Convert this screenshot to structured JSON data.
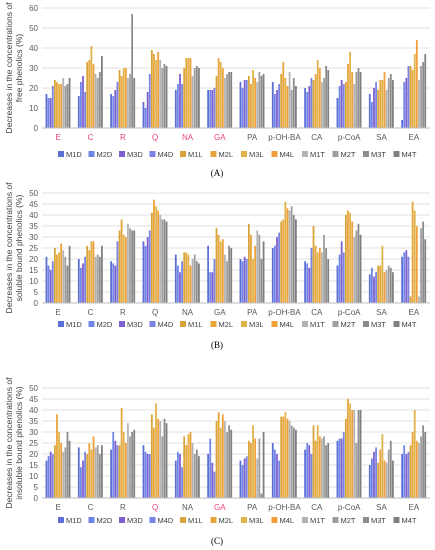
{
  "colors": [
    "#5b6fd6",
    "#6f86e8",
    "#7d5fd0",
    "#7a84e0",
    "#d7a43a",
    "#e8a53a",
    "#e2b24a",
    "#f0a038",
    "#b3b3b3",
    "#9e9e9e",
    "#8c8c8c",
    "#808080"
  ],
  "chart_data": [
    {
      "panel": "(A)",
      "type": "bar",
      "ylabel": "Decreases in the concentrations of free phenolics (%)",
      "ylim": [
        0,
        60
      ],
      "yticks": [
        0,
        10,
        20,
        30,
        40,
        50,
        60
      ],
      "legend": [
        "M1D",
        "M2D",
        "M3D",
        "M4D",
        "M1L",
        "M2L",
        "M3L",
        "M4L",
        "M1T",
        "M2T",
        "M3T",
        "M4T"
      ],
      "categories": [
        "E",
        "C",
        "R",
        "Q",
        "NA",
        "GA",
        "PA",
        "p-OH-BA",
        "CA",
        "p-CoA",
        "SA",
        "EA"
      ],
      "highlighted_categories": [
        "E",
        "C",
        "R",
        "Q",
        "NA",
        "GA"
      ],
      "values": [
        [
          17,
          15,
          15,
          21,
          24,
          23,
          22,
          22,
          25,
          21,
          22,
          25
        ],
        [
          16,
          23,
          26,
          18,
          33,
          34,
          41,
          32,
          27,
          25,
          28,
          36
        ],
        [
          17,
          16,
          19,
          23,
          29,
          26,
          30,
          30,
          25,
          27,
          57,
          25
        ],
        [
          13,
          10,
          18,
          27,
          39,
          37,
          34,
          38,
          34,
          30,
          32,
          31
        ],
        [
          19,
          22,
          27,
          22,
          30,
          35,
          35,
          35,
          26,
          30,
          31,
          30
        ],
        [
          19,
          19,
          19,
          20,
          26,
          35,
          33,
          30,
          25,
          27,
          28,
          28
        ],
        [
          23,
          20,
          24,
          24,
          26,
          22,
          29,
          25,
          23,
          28,
          26,
          27
        ],
        [
          23,
          17,
          19,
          22,
          27,
          33,
          25,
          21,
          28,
          19,
          25,
          21
        ],
        [
          20,
          18,
          21,
          25,
          24,
          27,
          34,
          30,
          23,
          25,
          31,
          29
        ],
        [
          15,
          21,
          24,
          22,
          23,
          32,
          38,
          28,
          22,
          28,
          30,
          28
        ],
        [
          17,
          13,
          20,
          23,
          19,
          24,
          24,
          28,
          19,
          25,
          27,
          24
        ],
        [
          4,
          23,
          25,
          31,
          31,
          29,
          37,
          44,
          24,
          31,
          33,
          37
        ]
      ]
    },
    {
      "panel": "(B)",
      "type": "bar",
      "ylabel": "Decreases in the concentrations of soluble bound phenolics (%)",
      "ylim": [
        0,
        50
      ],
      "yticks": [
        0,
        5,
        10,
        15,
        20,
        25,
        30,
        35,
        40,
        45,
        50
      ],
      "legend": [
        "M1D",
        "M2D",
        "M3D",
        "M4D",
        "M1L",
        "M2L",
        "M3L",
        "M4L",
        "M1T",
        "M2T",
        "M3T",
        "M4T"
      ],
      "categories": [
        "E",
        "C",
        "R",
        "Q",
        "NA",
        "GA",
        "PA",
        "p-OH-BA",
        "CA",
        "p-CoA",
        "SA",
        "EA"
      ],
      "highlighted_categories": [],
      "values": [
        [
          21,
          17,
          15,
          19,
          25,
          22,
          23,
          27,
          24,
          21,
          17,
          26
        ],
        [
          20,
          16,
          18,
          21,
          26,
          24,
          28,
          28,
          21,
          22,
          21,
          26
        ],
        [
          19,
          18,
          17,
          28,
          33,
          38,
          31,
          30,
          36,
          34,
          33,
          33
        ],
        [
          28,
          26,
          30,
          33,
          41,
          47,
          44,
          42,
          40,
          38,
          38,
          37
        ],
        [
          22,
          17,
          14,
          19,
          23,
          23,
          22,
          17,
          20,
          22,
          19,
          18
        ],
        [
          26,
          14,
          14,
          20,
          34,
          31,
          28,
          29,
          22,
          19,
          26,
          25
        ],
        [
          20,
          19,
          21,
          20,
          36,
          31,
          20,
          26,
          33,
          31,
          20,
          28
        ],
        [
          25,
          26,
          30,
          32,
          37,
          38,
          46,
          43,
          42,
          44,
          40,
          38
        ],
        [
          19,
          18,
          16,
          25,
          35,
          26,
          23,
          25,
          23,
          31,
          25,
          20
        ],
        [
          17,
          22,
          28,
          23,
          40,
          42,
          41,
          37,
          30,
          33,
          36,
          31
        ],
        [
          13,
          16,
          12,
          14,
          17,
          17,
          26,
          14,
          15,
          17,
          16,
          14
        ],
        [
          21,
          23,
          24,
          21,
          3,
          46,
          42,
          35,
          3,
          34,
          37,
          29
        ]
      ]
    },
    {
      "panel": "(C)",
      "type": "bar",
      "ylabel": "Decreases in the concentrations of insoluble bound phenolics (%)",
      "ylim": [
        0,
        50
      ],
      "yticks": [
        0,
        5,
        10,
        15,
        20,
        25,
        30,
        35,
        40,
        45,
        50
      ],
      "legend": [
        "M1D",
        "M2D",
        "M3D",
        "M4D",
        "M1L",
        "M2L",
        "M3L",
        "M4L",
        "M1T",
        "M2T",
        "M3T",
        "M4T"
      ],
      "categories": [
        "E",
        "C",
        "R",
        "Q",
        "NA",
        "GA",
        "PA",
        "p-OH-BA",
        "CA",
        "p-CoA",
        "SA",
        "EA"
      ],
      "highlighted_categories": [
        "Q",
        "GA"
      ],
      "values": [
        [
          17,
          19,
          21,
          20,
          24,
          38,
          30,
          25,
          21,
          23,
          30,
          26
        ],
        [
          23,
          14,
          17,
          21,
          20,
          25,
          22,
          28,
          23,
          24,
          20,
          24
        ],
        [
          22,
          30,
          26,
          24,
          24,
          41,
          30,
          25,
          34,
          28,
          30,
          31
        ],
        [
          24,
          21,
          20,
          20,
          38,
          32,
          43,
          36,
          35,
          28,
          36,
          34
        ],
        [
          17,
          21,
          20,
          14,
          28,
          24,
          29,
          30,
          25,
          20,
          22,
          19
        ],
        [
          20,
          27,
          16,
          12,
          35,
          39,
          32,
          38,
          35,
          30,
          33,
          31
        ],
        [
          17,
          15,
          18,
          19,
          26,
          25,
          33,
          27,
          18,
          27,
          2,
          30
        ],
        [
          25,
          22,
          20,
          17,
          37,
          37,
          39,
          36,
          35,
          33,
          32,
          31
        ],
        [
          22,
          25,
          24,
          20,
          33,
          26,
          33,
          28,
          27,
          28,
          24,
          25
        ],
        [
          26,
          27,
          27,
          30,
          36,
          45,
          43,
          40,
          40,
          25,
          40,
          40
        ],
        [
          15,
          18,
          21,
          23,
          16,
          22,
          29,
          17,
          16,
          22,
          26,
          17
        ],
        [
          20,
          24,
          20,
          21,
          24,
          30,
          40,
          26,
          25,
          28,
          33,
          30
        ]
      ]
    }
  ]
}
